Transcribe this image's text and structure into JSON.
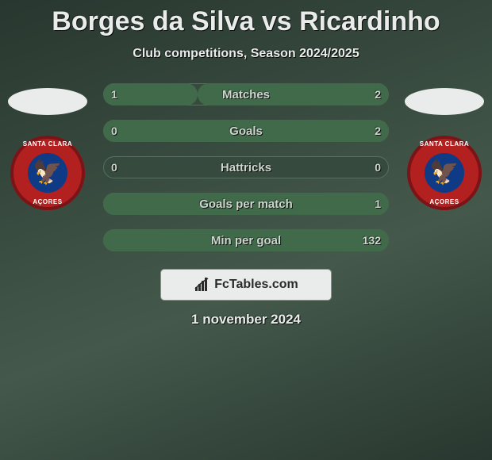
{
  "colors": {
    "background_gradient_start": "#28372f",
    "background_gradient_end": "#44594b",
    "title": "#e9ecea",
    "subtitle": "#e9ecea",
    "bar_text": "#cfd6d0",
    "bar_track": "#364b3d",
    "bar_fill_left": "#416a4a",
    "bar_fill_right": "#416a4a",
    "bar_border": "#58705f",
    "ellipse": "#e9ecea",
    "attribution_bg": "#e9ecea",
    "attribution_border": "#8a948c",
    "attribution_text": "#2a2a2a",
    "date_text": "#e9ecea",
    "badge_outer": "#b22020",
    "badge_ring1": "#7a1416",
    "badge_ring2": "#b22020",
    "badge_inner": "#0f3a86",
    "eagle": "#d9a53a"
  },
  "title": "Borges da Silva vs Ricardinho",
  "subtitle": "Club competitions, Season 2024/2025",
  "date": "1 november 2024",
  "attribution": "FcTables.com",
  "player_left": {
    "club_name_top": "SANTA CLARA",
    "club_name_bottom": "AÇORES"
  },
  "player_right": {
    "club_name_top": "SANTA CLARA",
    "club_name_bottom": "AÇORES"
  },
  "stats": [
    {
      "label": "Matches",
      "left_value": "1",
      "right_value": "2",
      "left_pct": 33,
      "right_pct": 67
    },
    {
      "label": "Goals",
      "left_value": "0",
      "right_value": "2",
      "left_pct": 0,
      "right_pct": 100
    },
    {
      "label": "Hattricks",
      "left_value": "0",
      "right_value": "0",
      "left_pct": 0,
      "right_pct": 0
    },
    {
      "label": "Goals per match",
      "left_value": "",
      "right_value": "1",
      "left_pct": 0,
      "right_pct": 100
    },
    {
      "label": "Min per goal",
      "left_value": "",
      "right_value": "132",
      "left_pct": 0,
      "right_pct": 100
    }
  ]
}
